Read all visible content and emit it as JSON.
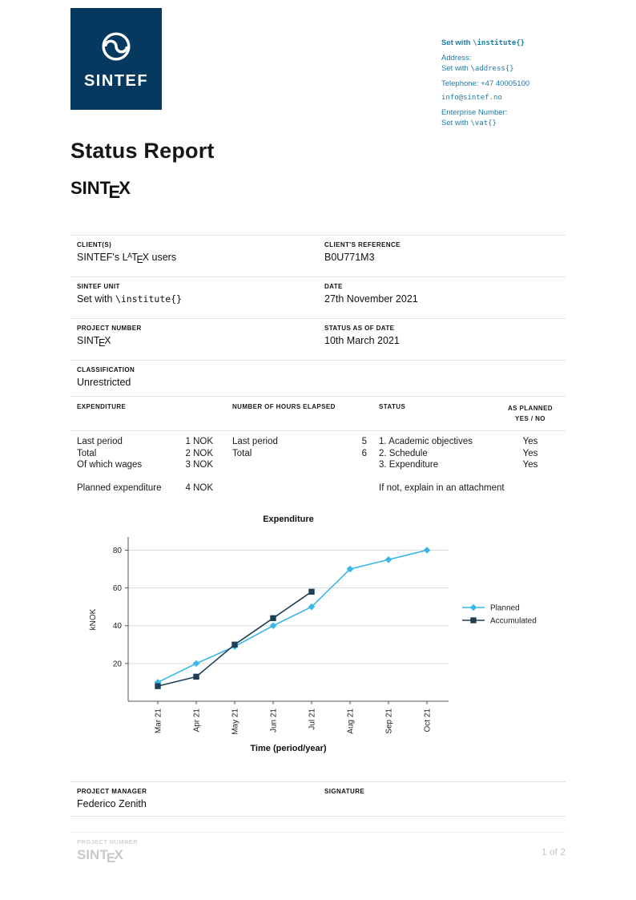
{
  "brand": {
    "name": "SINTEF"
  },
  "contact": {
    "line1_pre": "Set with ",
    "line1_code": "\\institute{}",
    "address_label": "Address:",
    "address_pre": "Set with ",
    "address_code": "\\address{}",
    "telephone": "Telephone: +47 40005100",
    "email": "info@sintef.no",
    "enterprise_label": "Enterprise Number:",
    "vat_pre": "Set with ",
    "vat_code": "\\vat{}"
  },
  "title": "Status Report",
  "project": {
    "pre": "SINT",
    "e": "E",
    "x": "X"
  },
  "info": {
    "clients_label": "CLIENT(S)",
    "clients_pre": "SINTEF's ",
    "latex": {
      "l": "L",
      "a": "A",
      "t": "T",
      "e": "E",
      "x": "X"
    },
    "clients_post": " users",
    "client_ref_label": "CLIENT'S REFERENCE",
    "client_ref": "B0U771M3",
    "unit_label": "SINTEF UNIT",
    "unit_pre": "Set with ",
    "unit_code": "\\institute{}",
    "date_label": "DATE",
    "date": "27th November 2021",
    "project_number_label": "PROJECT NUMBER",
    "status_date_label": "STATUS AS OF DATE",
    "status_date": "10th March 2021",
    "classification_label": "CLASSIFICATION",
    "classification": "Unrestricted"
  },
  "table": {
    "col_expenditure": {
      "header": "EXPENDITURE",
      "rows": [
        {
          "label": "Last period",
          "value": "1 NOK"
        },
        {
          "label": "Total",
          "value": "2 NOK"
        },
        {
          "label": "Of which wages",
          "value": "3 NOK"
        }
      ],
      "planned": {
        "label": "Planned expenditure",
        "value": "4 NOK"
      }
    },
    "col_hours": {
      "header": "NUMBER OF HOURS ELAPSED",
      "rows": [
        {
          "label": "Last period",
          "value": "5"
        },
        {
          "label": "Total",
          "value": "6"
        }
      ]
    },
    "col_status": {
      "header": "STATUS",
      "rows": [
        "1. Academic objectives",
        "2. Schedule",
        "3. Expenditure"
      ],
      "note": "If not, explain in an attachment"
    },
    "col_planned": {
      "header_line1": "AS PLANNED",
      "header_line2": "YES / NO",
      "rows": [
        "Yes",
        "Yes",
        "Yes"
      ]
    }
  },
  "chart_data": {
    "type": "line",
    "title": "Expenditure",
    "xlabel": "Time (period/year)",
    "ylabel": "kNOK",
    "categories": [
      "Mar 21",
      "Apr 21",
      "May 21",
      "Jun 21",
      "Jul 21",
      "Aug 21",
      "Sep 21",
      "Oct 21"
    ],
    "series": [
      {
        "name": "Planned",
        "color": "#38b7e8",
        "marker": "diamond",
        "values": [
          10,
          20,
          29,
          40,
          50,
          70,
          75,
          80
        ]
      },
      {
        "name": "Accumulated",
        "color": "#1d4057",
        "marker": "square",
        "values": [
          8,
          13,
          30,
          44,
          58,
          null,
          null,
          null
        ]
      }
    ],
    "ylim": [
      0,
      87
    ],
    "yticks": [
      20,
      40,
      60,
      80
    ],
    "grid": true,
    "legend_position": "right"
  },
  "manager": {
    "label": "PROJECT MANAGER",
    "name": "Federico Zenith",
    "signature_label": "SIGNATURE"
  },
  "footer": {
    "project_number_label": "PROJECT NUMBER",
    "page": "1 of 2"
  }
}
